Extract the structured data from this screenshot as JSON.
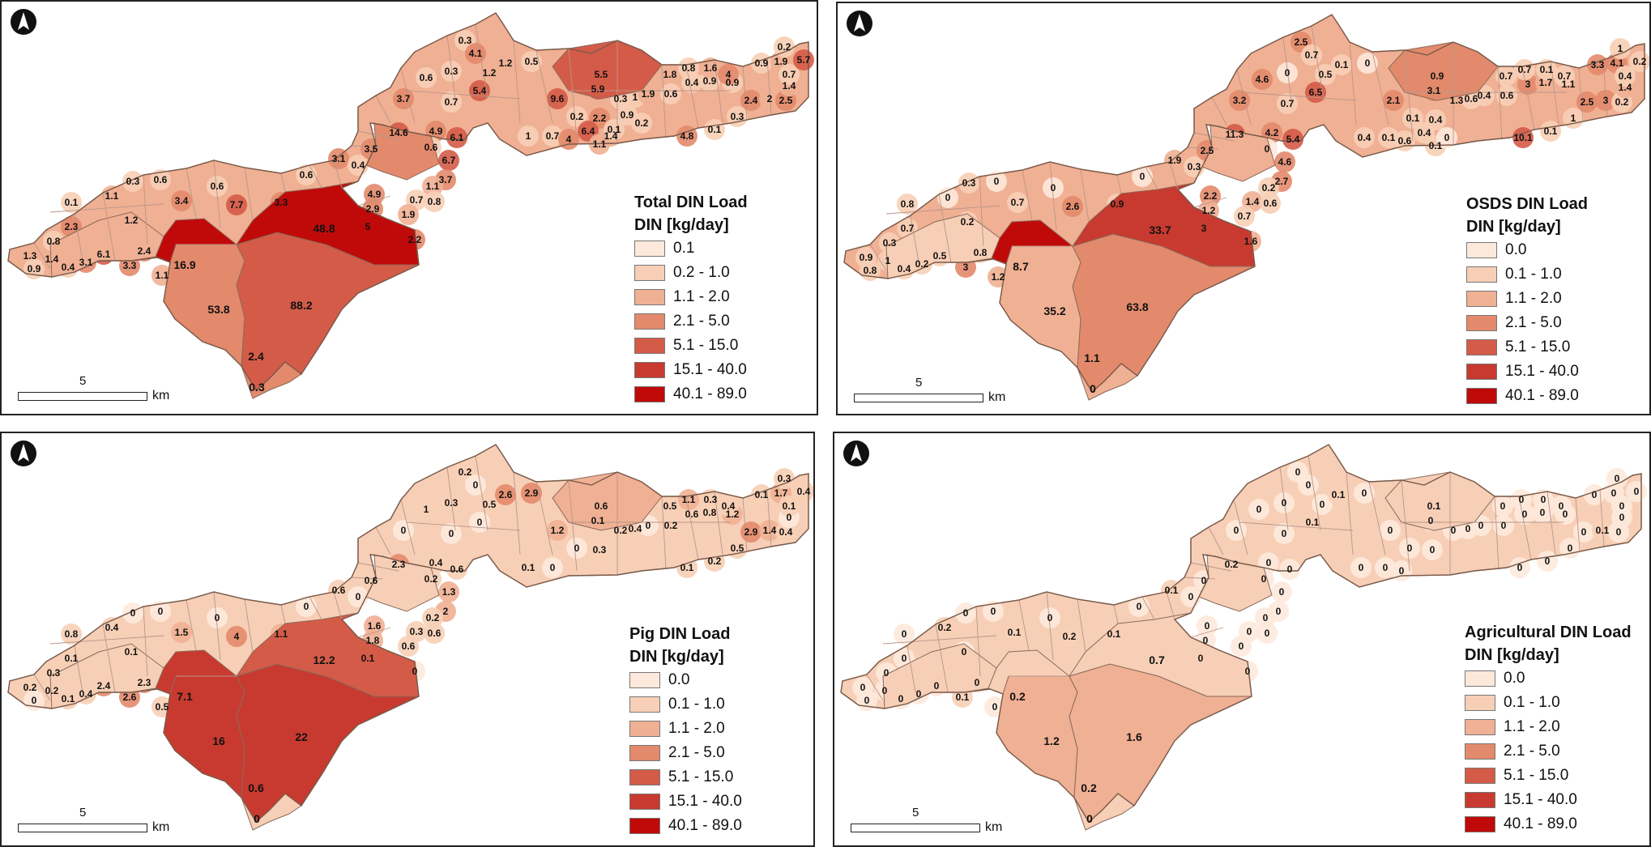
{
  "legend_class_colors": [
    "#fde9dc",
    "#f7cfb6",
    "#f0b093",
    "#e38a6c",
    "#d45b48",
    "#c83a2f",
    "#c00a0a"
  ],
  "panels": [
    {
      "id": "total",
      "legend_title_line1": "Total DIN Load",
      "legend_title_line2": "DIN [kg/day]",
      "legend_items": [
        "0.1",
        "0.2 - 1.0",
        "1.1 - 2.0",
        "2.1 - 5.0",
        "5.1 - 15.0",
        "15.1 - 40.0",
        "40.1 - 89.0"
      ],
      "scale_label": "5",
      "scale_unit": "km",
      "region_classes": [
        3,
        4,
        6,
        6,
        3,
        4,
        3,
        2
      ],
      "big_labels": [
        "53.8",
        "88.2",
        "48.8",
        "16.9",
        "2.4",
        "0.3"
      ],
      "small_labels": [
        "1.3",
        "0.9",
        "1.4",
        "0.4",
        "3.1",
        "6.1",
        "3.3",
        "2.4",
        "1.1",
        "2.3",
        "0.8",
        "0.1",
        "1.1",
        "1.2",
        "0.3",
        "0.6",
        "3.4",
        "0.6",
        "7.7",
        "3.3",
        "0.6",
        "3.1",
        "0.4",
        "3.5",
        "14.6",
        "4.9",
        "6.1",
        "6.7",
        "3.7",
        "4.9",
        "2.9",
        "5",
        "0.7",
        "1.1",
        "0.8",
        "1.9",
        "2.2",
        "0.6",
        "3.7",
        "0.7",
        "0.6",
        "0.3",
        "0.3",
        "4.1",
        "1.2",
        "1.2",
        "0.5",
        "5.4",
        "9.6",
        "5.9",
        "5.5",
        "0.2",
        "2.2",
        "0.3",
        "1",
        "1.9",
        "1.8",
        "0.4",
        "0.9",
        "0.9",
        "0.6",
        "0.8",
        "1.6",
        "4",
        "2.4",
        "2",
        "2.5",
        "0.9",
        "1.9",
        "0.2",
        "1.4",
        "0.7",
        "5.7",
        "4.8",
        "0.1",
        "0.3",
        "1",
        "0.7",
        "4",
        "6.4",
        "1.1",
        "1.4",
        "0.1",
        "0.9",
        "0.2"
      ]
    },
    {
      "id": "osds",
      "legend_title_line1": "OSDS DIN Load",
      "legend_title_line2": "DIN [kg/day]",
      "legend_items": [
        "0.0",
        "0.1 - 1.0",
        "1.1 - 2.0",
        "2.1 - 5.0",
        "5.1 - 15.0",
        "15.1 - 40.0",
        "40.1 - 89.0"
      ],
      "scale_label": "5",
      "scale_unit": "km",
      "region_classes": [
        2,
        3,
        5,
        6,
        2,
        3,
        2,
        1
      ],
      "big_labels": [
        "35.2",
        "63.8",
        "33.7",
        "8.7",
        "1.1",
        "0"
      ],
      "small_labels": [
        "0.9",
        "0.8",
        "1",
        "0.4",
        "0.2",
        "0.5",
        "3",
        "0.8",
        "1.2",
        "0.7",
        "0.3",
        "0.8",
        "0",
        "0.2",
        "0.3",
        "0",
        "0.7",
        "0",
        "2.6",
        "0.9",
        "0",
        "1.9",
        "0.3",
        "2.5",
        "11.3",
        "4.2",
        "5.4",
        "4.6",
        "2.7",
        "2.2",
        "1.2",
        "3",
        "1.4",
        "0.2",
        "0.6",
        "0.7",
        "1.6",
        "0",
        "3.2",
        "0.7",
        "4.6",
        "0",
        "2.5",
        "0.7",
        "0.5",
        "0.1",
        "0",
        "6.5",
        "2.1",
        "3.1",
        "0.9",
        "0.1",
        "0.4",
        "1.3",
        "0.6",
        "0.4",
        "0.7",
        "3",
        "1.7",
        "1.1",
        "0.6",
        "0.7",
        "0.1",
        "0.7",
        "2.5",
        "3",
        "0.2",
        "3.3",
        "4.1",
        "1",
        "1.4",
        "0.4",
        "0.2",
        "10.1",
        "0.1",
        "1",
        "0.4",
        "0.1",
        "0.6",
        "0.4",
        "0.1",
        "0"
      ]
    },
    {
      "id": "pig",
      "legend_title_line1": "Pig DIN Load",
      "legend_title_line2": "DIN [kg/day]",
      "legend_items": [
        "0.0",
        "0.1 - 1.0",
        "1.1 - 2.0",
        "2.1 - 5.0",
        "5.1 - 15.0",
        "15.1 - 40.0",
        "40.1 - 89.0"
      ],
      "scale_label": "5",
      "scale_unit": "km",
      "region_classes": [
        5,
        5,
        4,
        5,
        1,
        2,
        1,
        1
      ],
      "big_labels": [
        "16",
        "22",
        "12.2",
        "7.1",
        "0.6",
        "0"
      ],
      "small_labels": [
        "0.2",
        "0",
        "0.2",
        "0.1",
        "0.4",
        "2.4",
        "2.6",
        "2.3",
        "0.5",
        "0.1",
        "0.3",
        "0.8",
        "0.4",
        "0.1",
        "0",
        "0",
        "1.5",
        "0",
        "4",
        "1.1",
        "0",
        "0.6",
        "0",
        "0.6",
        "2.3",
        "0.4",
        "0.6",
        "1.3",
        "2",
        "1.6",
        "1.8",
        "0.1",
        "0.3",
        "0.2",
        "0.6",
        "0.6",
        "0",
        "0.2",
        "0",
        "0",
        "1",
        "0.3",
        "0.2",
        "0",
        "0.5",
        "2.6",
        "2.9",
        "0",
        "1.2",
        "0.1",
        "0.6",
        "0",
        "0.3",
        "0.2",
        "0.4",
        "0",
        "0.5",
        "0.6",
        "0.8",
        "1.2",
        "0.2",
        "1.1",
        "0.3",
        "0.4",
        "2.9",
        "1.4",
        "0.4",
        "0.1",
        "1.7",
        "0.3",
        "0",
        "0.1",
        "0.4",
        "0.1",
        "0.2",
        "0.5",
        "0.1",
        "0"
      ]
    },
    {
      "id": "agri",
      "legend_title_line1": "Agricultural DIN Load",
      "legend_title_line2": "DIN [kg/day]",
      "legend_items": [
        "0.0",
        "0.1 - 1.0",
        "1.1 - 2.0",
        "2.1 - 5.0",
        "5.1 - 15.0",
        "15.1 - 40.0",
        "40.1 - 89.0"
      ],
      "scale_label": "5",
      "scale_unit": "km",
      "region_classes": [
        2,
        2,
        1,
        1,
        1,
        1,
        1,
        1
      ],
      "big_labels": [
        "1.2",
        "1.6",
        "0.7",
        "0.2",
        "0.2",
        "0"
      ],
      "small_labels": [
        "0",
        "0",
        "0",
        "0",
        "0",
        "0",
        "0.1",
        "0",
        "0",
        "0",
        "0",
        "0",
        "0.2",
        "0",
        "0",
        "0",
        "0.1",
        "0",
        "0.2",
        "0.1",
        "0",
        "0.1",
        "0",
        "0",
        "0.2",
        "0",
        "0",
        "0",
        "0",
        "0",
        "0",
        "0",
        "0",
        "0",
        "0",
        "0",
        "0",
        "0",
        "0",
        "0",
        "0",
        "0",
        "0",
        "0",
        "0",
        "0.1",
        "0",
        "0.1",
        "0",
        "0",
        "0.1",
        "0",
        "0",
        "0",
        "0",
        "0",
        "0",
        "0",
        "0",
        "0",
        "0",
        "0",
        "0",
        "0",
        "0",
        "0.1",
        "0",
        "0",
        "0",
        "0",
        "0",
        "0",
        "0",
        "0",
        "0",
        "0",
        "0",
        "0",
        "0"
      ]
    }
  ]
}
